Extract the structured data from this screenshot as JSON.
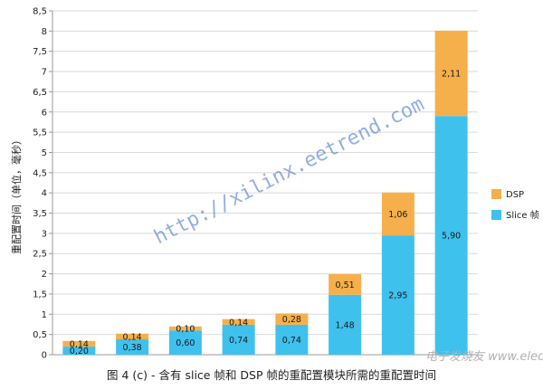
{
  "caption": "图 4 (c) - 含有 slice 帧和 DSP 帧的重配置模块所需的重配置时间",
  "watermark": "http://xilinx.eetrend.com",
  "watermark_logo": "电子发烧友 www.elecfans.com",
  "colors": {
    "slice": "#3fc1ee",
    "dsp": "#f5b04b",
    "grid": "#d9d9d9",
    "axis": "#9a9a9a"
  },
  "chart_data": {
    "type": "bar",
    "stacked": true,
    "ylabel": "重配置时间（单位，毫秒）",
    "xlabel": "",
    "ylim": [
      0,
      8.5
    ],
    "yticks": [
      "0",
      "0,5",
      "1",
      "1,5",
      "2",
      "2,5",
      "3",
      "3,5",
      "4",
      "4,5",
      "5",
      "5,5",
      "6",
      "6,5",
      "7",
      "7,5",
      "8",
      "8,5"
    ],
    "grid": true,
    "legend_position": "right",
    "categories": [
      "",
      "",
      "",
      "",
      "",
      "",
      "",
      ""
    ],
    "series": [
      {
        "name": "Slice 帧",
        "values": [
          0.2,
          0.38,
          0.6,
          0.74,
          0.74,
          1.48,
          2.95,
          5.9
        ],
        "labels": [
          "0,20",
          "0,38",
          "0,60",
          "0,74",
          "0,74",
          "1,48",
          "2,95",
          "5,90"
        ]
      },
      {
        "name": "DSP",
        "values": [
          0.14,
          0.14,
          0.1,
          0.14,
          0.28,
          0.51,
          1.06,
          2.11
        ],
        "labels": [
          "0,14",
          "0,14",
          "0,10",
          "0,14",
          "0,28",
          "0,51",
          "1,06",
          "2,11"
        ]
      }
    ]
  }
}
